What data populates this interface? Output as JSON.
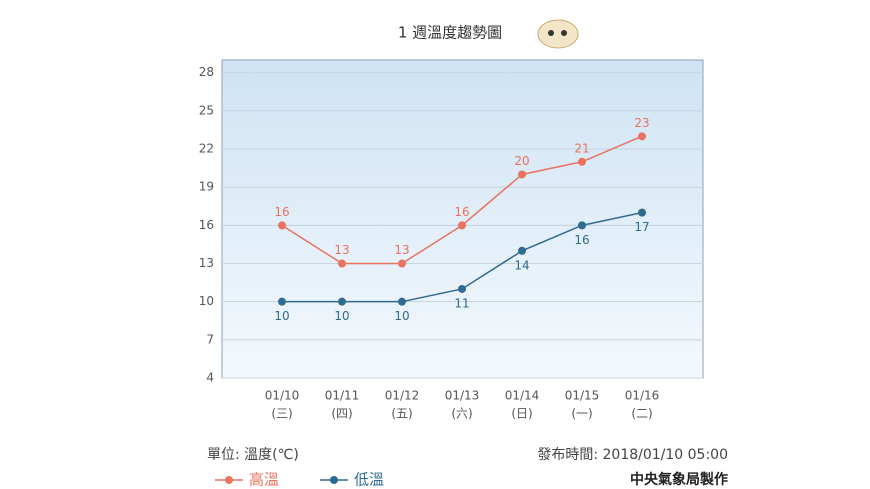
{
  "chart_data": {
    "type": "line",
    "title": "1 週溫度趨勢圖",
    "categories": [
      "01/10",
      "01/11",
      "01/12",
      "01/13",
      "01/14",
      "01/15",
      "01/16"
    ],
    "weekdays": [
      "(三)",
      "(四)",
      "(五)",
      "(六)",
      "(日)",
      "(一)",
      "(二)"
    ],
    "series": [
      {
        "name": "高溫",
        "color": "#e8735f",
        "values": [
          16,
          13,
          13,
          16,
          20,
          21,
          23
        ]
      },
      {
        "name": "低溫",
        "color": "#2e6b8e",
        "values": [
          10,
          10,
          10,
          11,
          14,
          16,
          17
        ]
      }
    ],
    "ylim": [
      4,
      29
    ],
    "yticks": [
      4,
      7,
      10,
      13,
      16,
      19,
      22,
      25,
      28
    ],
    "grid": true,
    "unit_note": "單位: 溫度(℃)",
    "publish_time": "發布時間: 2018/01/10 05:00",
    "credit": "中央氣象局製作"
  }
}
